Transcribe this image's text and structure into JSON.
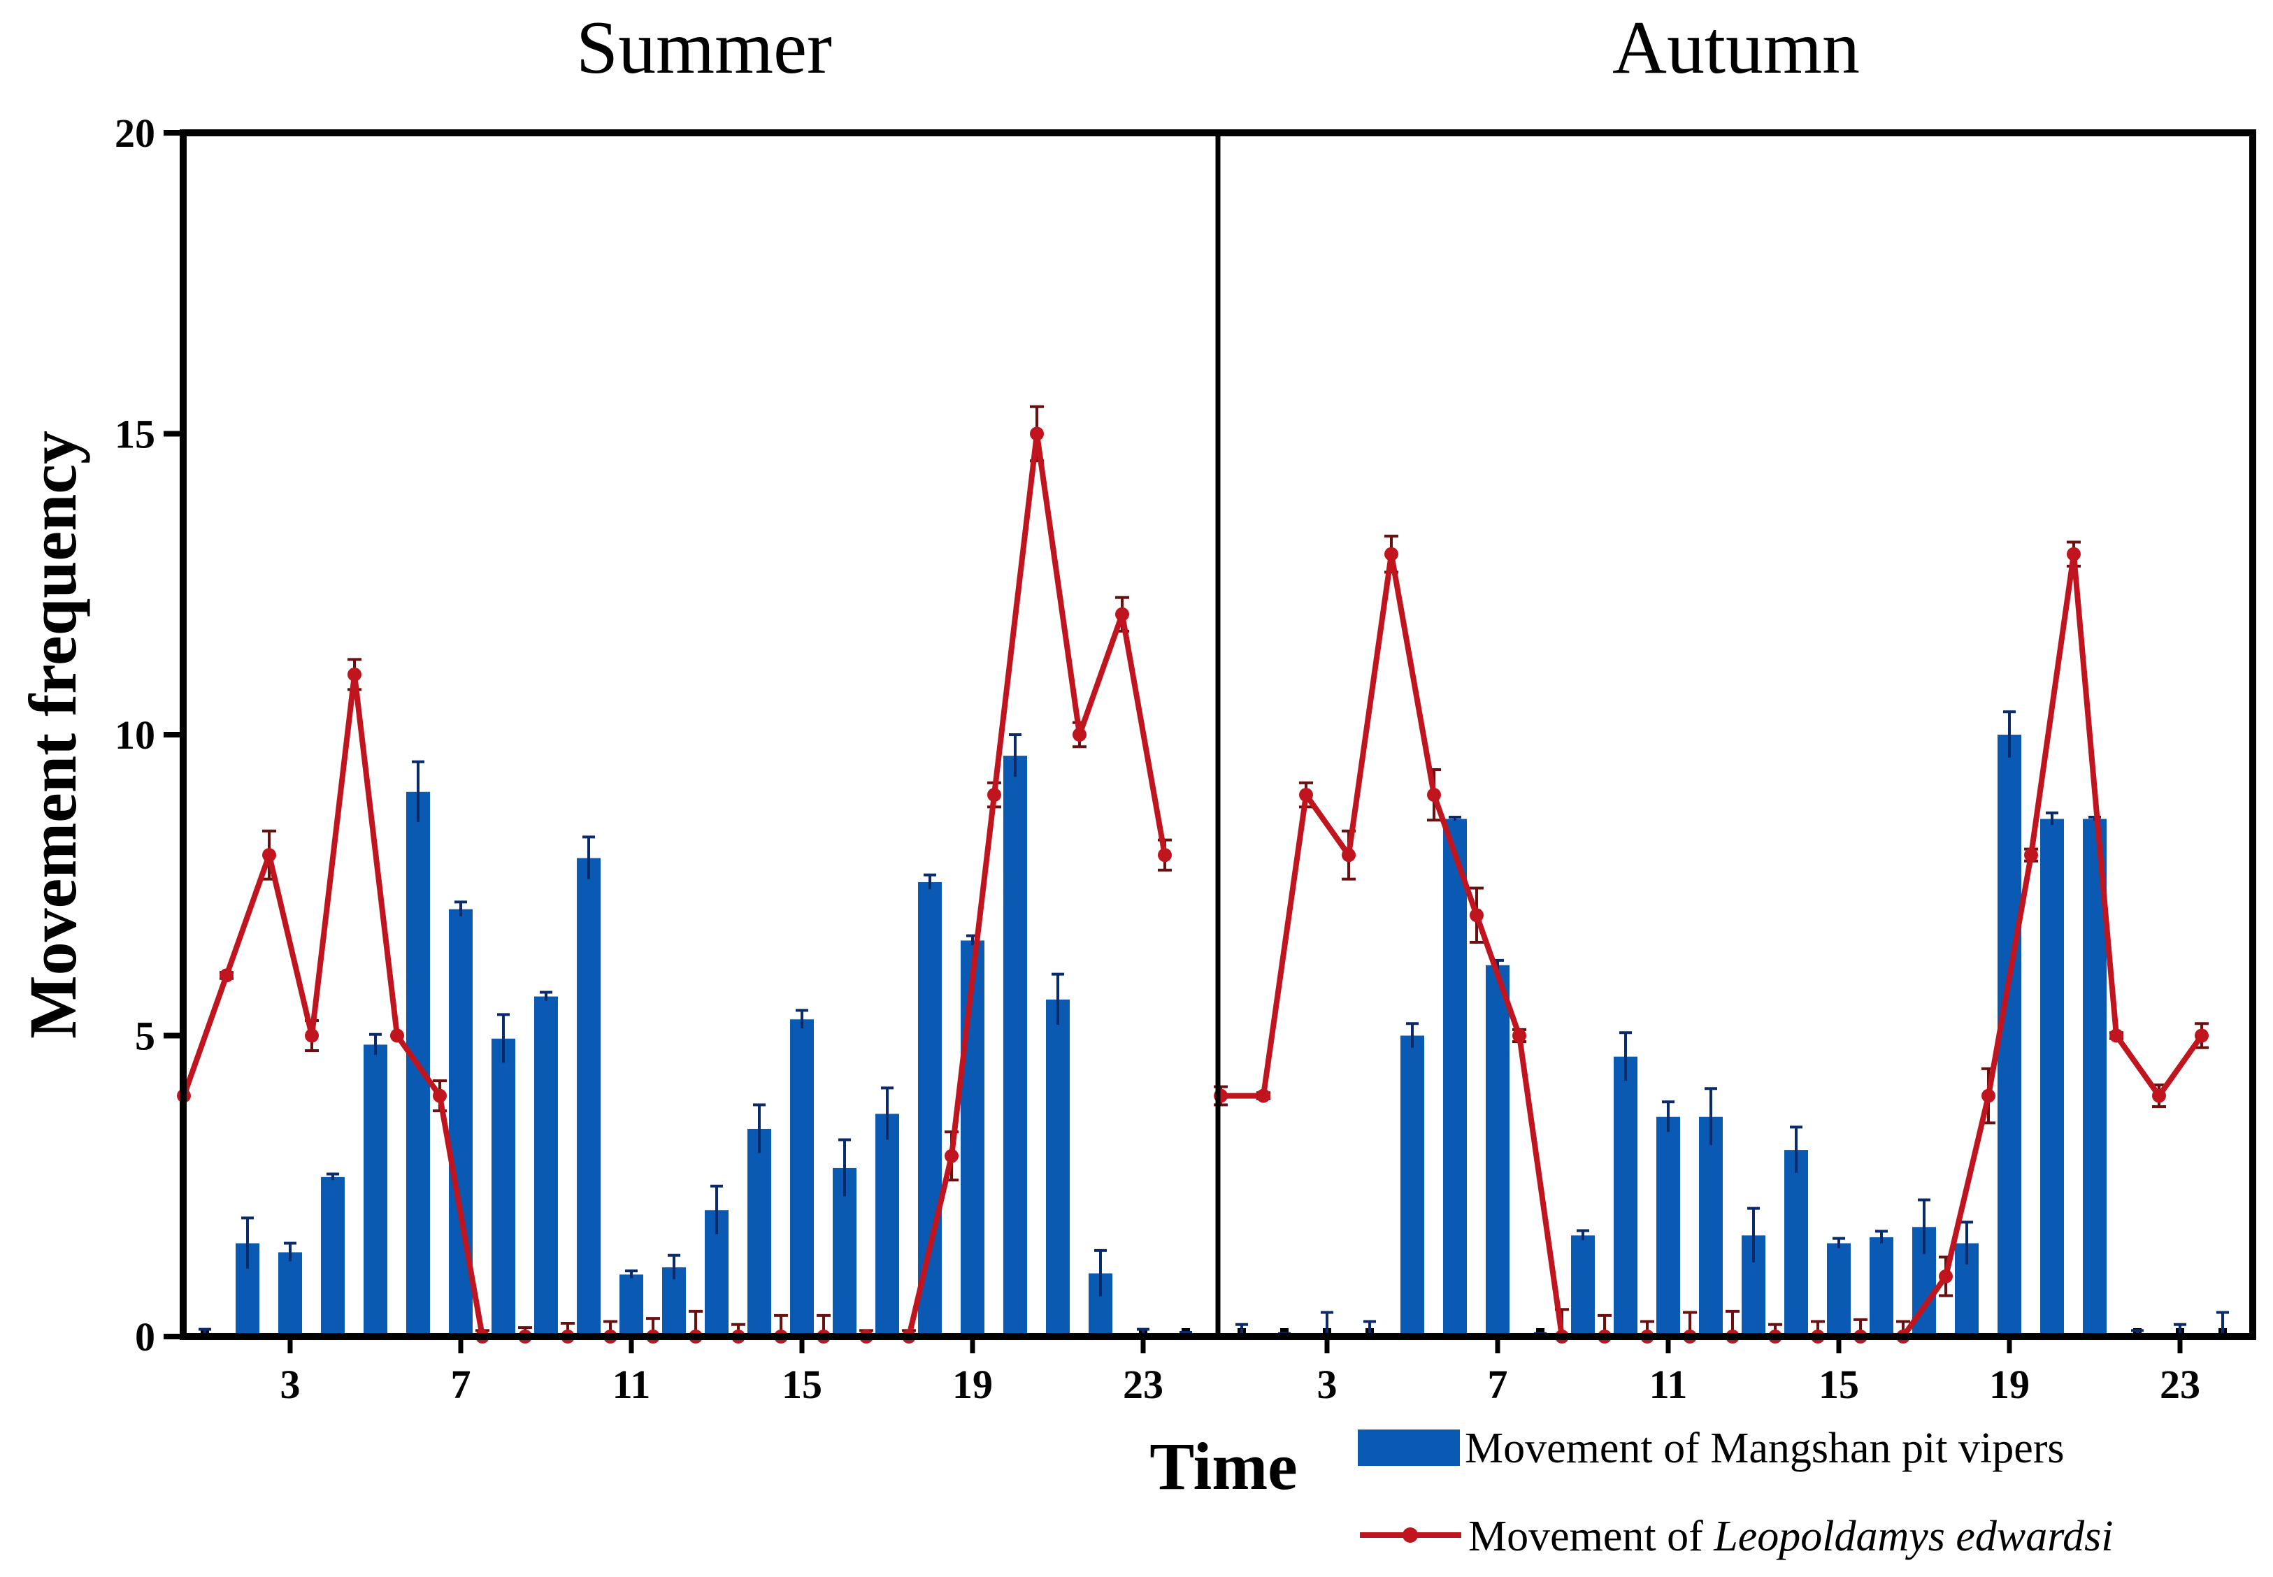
{
  "chart_data": {
    "type": "bar+line",
    "ylabel": "Movement frequency",
    "xlabel": "Time",
    "ylim": [
      0,
      20
    ],
    "yticks": [
      "0",
      "5",
      "10",
      "15",
      "20"
    ],
    "xticks": [
      "3",
      "7",
      "11",
      "15",
      "19",
      "23"
    ],
    "legend": {
      "position": "bottom-right",
      "bar_label": "Movement of Mangshan pit vipers",
      "line_prefix": "Movement of ",
      "line_species": "Leopoldamys edwardsi"
    },
    "colors": {
      "bar": "#0a5ab4",
      "line": "#c0141e",
      "axis": "#000000"
    },
    "panels": [
      {
        "title": "Summer",
        "x": [
          1,
          2,
          3,
          4,
          5,
          6,
          7,
          8,
          9,
          10,
          11,
          12,
          13,
          14,
          15,
          16,
          17,
          18,
          19,
          20,
          21,
          22,
          23,
          24
        ],
        "bars": [
          0,
          1.55,
          1.4,
          2.65,
          4.85,
          9.05,
          7.1,
          4.95,
          5.65,
          7.95,
          1.03,
          1.15,
          2.1,
          3.45,
          5.27,
          2.8,
          3.7,
          7.55,
          6.58,
          9.65,
          5.6,
          1.05,
          0,
          0
        ],
        "bar_errors": [
          0.12,
          0.42,
          0.15,
          0.05,
          0.17,
          0.5,
          0.12,
          0.4,
          0.07,
          0.35,
          0.06,
          0.2,
          0.4,
          0.4,
          0.15,
          0.47,
          0.43,
          0.12,
          0.08,
          0.35,
          0.42,
          0.38,
          0.12,
          0.07
        ],
        "line": [
          4,
          6,
          8,
          5,
          11,
          5,
          4,
          0,
          0,
          0,
          0,
          0,
          0,
          0,
          0,
          0,
          0,
          0,
          3,
          9,
          15,
          10,
          12,
          8
        ],
        "line_errors": [
          0,
          0.05,
          0.4,
          0.25,
          0.25,
          0,
          0.25,
          0.1,
          0.15,
          0.22,
          0.25,
          0.3,
          0.42,
          0.2,
          0.35,
          0.35,
          0.1,
          0.1,
          0.4,
          0.2,
          0.45,
          0.2,
          0.28,
          0.25
        ]
      },
      {
        "title": "Autumn",
        "x": [
          1,
          2,
          3,
          4,
          5,
          6,
          7,
          8,
          9,
          10,
          11,
          12,
          13,
          14,
          15,
          16,
          17,
          18,
          19,
          20,
          21,
          22,
          23,
          24
        ],
        "bars": [
          0,
          0,
          0,
          0,
          5.0,
          8.6,
          6.17,
          0,
          1.68,
          4.65,
          3.65,
          3.65,
          1.68,
          3.1,
          1.55,
          1.65,
          1.82,
          1.55,
          10.0,
          8.6,
          8.6,
          0,
          0,
          0
        ],
        "bar_errors": [
          0.2,
          0.05,
          0.4,
          0.25,
          0.2,
          0.03,
          0.08,
          0.05,
          0.08,
          0.4,
          0.25,
          0.47,
          0.45,
          0.38,
          0.08,
          0.1,
          0.45,
          0.35,
          0.38,
          0.1,
          0.03,
          0.1,
          0.2,
          0.4
        ],
        "line": [
          4,
          4,
          9,
          8,
          13,
          9,
          7,
          5,
          0,
          0,
          0,
          0,
          0,
          0,
          0,
          0,
          0,
          1,
          4,
          8,
          13,
          5,
          4,
          5
        ],
        "line_errors": [
          0.15,
          0.05,
          0.2,
          0.4,
          0.3,
          0.42,
          0.45,
          0.1,
          0.45,
          0.35,
          0.25,
          0.4,
          0.42,
          0.2,
          0.25,
          0.28,
          0.25,
          0.32,
          0.45,
          0.1,
          0.2,
          0.05,
          0.18,
          0.2
        ]
      }
    ]
  }
}
